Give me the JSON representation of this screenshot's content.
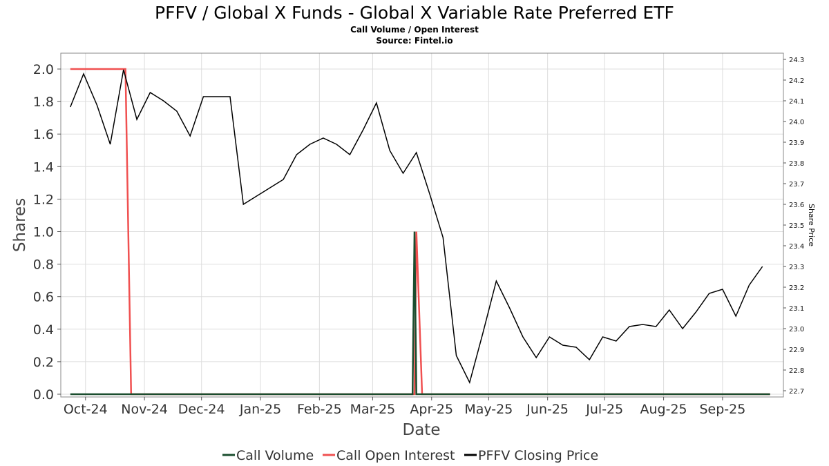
{
  "chart_data": {
    "type": "line",
    "title": "PFFV / Global X Funds - Global X Variable Rate Preferred ETF",
    "subtitle1": "Call Volume / Open Interest",
    "subtitle2": "Source: Fintel.io",
    "xlabel": "Date",
    "ylabel": "Shares",
    "y2label": "Share Price",
    "ylim": [
      0,
      2.1
    ],
    "y2lim": [
      22.67,
      24.3
    ],
    "x_range": [
      "2024-09-18",
      "2025-10-03"
    ],
    "y_ticks": [
      "0.0",
      "0.2",
      "0.4",
      "0.6",
      "0.8",
      "1.0",
      "1.2",
      "1.4",
      "1.6",
      "1.8",
      "2.0"
    ],
    "y2_ticks": [
      "22.7",
      "22.8",
      "22.9",
      "23.0",
      "23.1",
      "23.2",
      "23.3",
      "23.4",
      "23.5",
      "23.6",
      "23.7",
      "23.8",
      "23.9",
      "24.0",
      "24.1",
      "24.2",
      "24.3"
    ],
    "x_ticks": [
      {
        "label": "Oct-24",
        "date": "2024-10-01"
      },
      {
        "label": "Nov-24",
        "date": "2024-11-01"
      },
      {
        "label": "Dec-24",
        "date": "2024-12-01"
      },
      {
        "label": "Jan-25",
        "date": "2025-01-01"
      },
      {
        "label": "Feb-25",
        "date": "2025-02-01"
      },
      {
        "label": "Mar-25",
        "date": "2025-03-01"
      },
      {
        "label": "Apr-25",
        "date": "2025-04-01"
      },
      {
        "label": "May-25",
        "date": "2025-05-01"
      },
      {
        "label": "Jun-25",
        "date": "2025-06-01"
      },
      {
        "label": "Jul-25",
        "date": "2025-07-01"
      },
      {
        "label": "Aug-25",
        "date": "2025-08-01"
      },
      {
        "label": "Sep-25",
        "date": "2025-09-01"
      }
    ],
    "grid": true,
    "legend_position": "bottom",
    "series": [
      {
        "name": "Call Volume",
        "axis": "left",
        "color": "#1a4d2e",
        "points": [
          [
            "2024-09-23",
            0
          ],
          [
            "2025-03-22",
            0
          ],
          [
            "2025-03-23",
            1.0
          ],
          [
            "2025-03-24",
            0
          ],
          [
            "2025-09-26",
            0
          ]
        ]
      },
      {
        "name": "Call Open Interest",
        "axis": "left",
        "color": "#f05050",
        "points": [
          [
            "2024-09-23",
            2.0
          ],
          [
            "2024-10-22",
            2.0
          ],
          [
            "2024-10-25",
            0
          ],
          [
            "2025-03-23",
            0
          ],
          [
            "2025-03-24",
            1.0
          ],
          [
            "2025-03-27",
            0
          ],
          [
            "2025-09-26",
            0
          ]
        ]
      },
      {
        "name": "PFFV Closing Price",
        "axis": "right",
        "color": "#000000",
        "points": [
          [
            "2024-09-23",
            24.07
          ],
          [
            "2024-09-30",
            24.23
          ],
          [
            "2024-10-07",
            24.08
          ],
          [
            "2024-10-14",
            23.89
          ],
          [
            "2024-10-21",
            24.25
          ],
          [
            "2024-10-28",
            24.01
          ],
          [
            "2024-11-04",
            24.14
          ],
          [
            "2024-11-11",
            24.1
          ],
          [
            "2024-11-18",
            24.05
          ],
          [
            "2024-11-25",
            23.93
          ],
          [
            "2024-12-02",
            24.12
          ],
          [
            "2024-12-09",
            24.12
          ],
          [
            "2024-12-16",
            24.12
          ],
          [
            "2024-12-23",
            23.6
          ],
          [
            "2024-12-30",
            23.64
          ],
          [
            "2025-01-06",
            23.68
          ],
          [
            "2025-01-13",
            23.72
          ],
          [
            "2025-01-20",
            23.84
          ],
          [
            "2025-01-27",
            23.89
          ],
          [
            "2025-02-03",
            23.92
          ],
          [
            "2025-02-10",
            23.89
          ],
          [
            "2025-02-17",
            23.84
          ],
          [
            "2025-02-24",
            23.96
          ],
          [
            "2025-03-03",
            24.09
          ],
          [
            "2025-03-10",
            23.86
          ],
          [
            "2025-03-17",
            23.75
          ],
          [
            "2025-03-24",
            23.85
          ],
          [
            "2025-03-31",
            23.65
          ],
          [
            "2025-04-07",
            23.44
          ],
          [
            "2025-04-14",
            22.87
          ],
          [
            "2025-04-21",
            22.74
          ],
          [
            "2025-04-28",
            22.98
          ],
          [
            "2025-05-05",
            23.23
          ],
          [
            "2025-05-12",
            23.1
          ],
          [
            "2025-05-19",
            22.96
          ],
          [
            "2025-05-26",
            22.86
          ],
          [
            "2025-06-02",
            22.96
          ],
          [
            "2025-06-09",
            22.92
          ],
          [
            "2025-06-16",
            22.91
          ],
          [
            "2025-06-23",
            22.85
          ],
          [
            "2025-06-30",
            22.96
          ],
          [
            "2025-07-07",
            22.94
          ],
          [
            "2025-07-14",
            23.01
          ],
          [
            "2025-07-21",
            23.02
          ],
          [
            "2025-07-28",
            23.01
          ],
          [
            "2025-08-04",
            23.09
          ],
          [
            "2025-08-11",
            23.0
          ],
          [
            "2025-08-18",
            23.08
          ],
          [
            "2025-08-25",
            23.17
          ],
          [
            "2025-09-01",
            23.19
          ],
          [
            "2025-09-08",
            23.06
          ],
          [
            "2025-09-15",
            23.21
          ],
          [
            "2025-09-22",
            23.3
          ]
        ]
      }
    ]
  }
}
